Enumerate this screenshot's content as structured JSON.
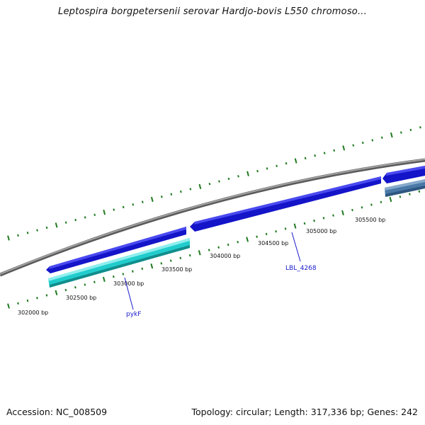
{
  "title": "Leptospira borgpetersenii serovar Hardjo-bovis L550 chromoso...",
  "footer": {
    "accession": "Accession: NC_008509",
    "summary": "Topology: circular; Length: 317,336 bp; Genes: 242"
  },
  "colors": {
    "background": "#ffffff",
    "backbone": "#808080",
    "tick": "#1f7a1f",
    "gene_forward": "#1515e6",
    "gene_reverse_cyan": "#22cccc",
    "gene_reverse_steel": "#4a79a8",
    "gene_label": "#1a1acc"
  },
  "ruler": {
    "labels": [
      "302000 bp",
      "302500 bp",
      "303000 bp",
      "303500 bp",
      "304000 bp",
      "304500 bp",
      "305000 bp",
      "305500 bp"
    ]
  },
  "genes": [
    {
      "label": "pykF",
      "strand": "reverse",
      "color": "cyan"
    },
    {
      "label": "LBL_4268",
      "strand": "forward",
      "color": "blue"
    }
  ]
}
